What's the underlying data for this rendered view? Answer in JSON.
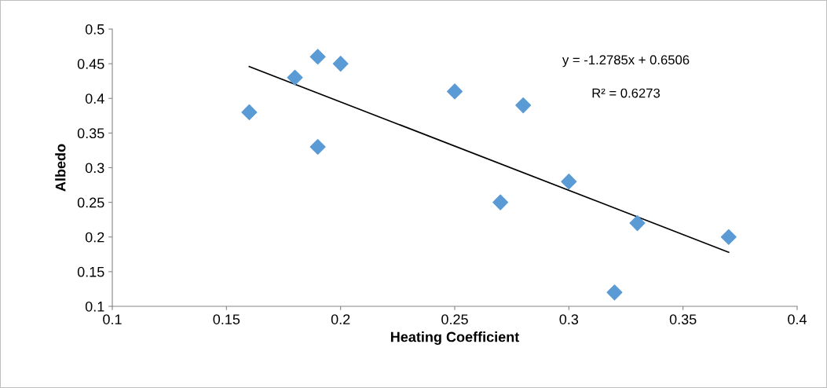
{
  "chart_data": {
    "type": "scatter",
    "xlabel": "Heating Coefficient",
    "ylabel": "Albedo",
    "series": [
      {
        "color": "#5b9bd5",
        "marker": "diamond",
        "x": [
          0.16,
          0.18,
          0.19,
          0.19,
          0.2,
          0.25,
          0.27,
          0.28,
          0.3,
          0.32,
          0.33,
          0.37
        ],
        "values": [
          0.38,
          0.43,
          0.46,
          0.33,
          0.45,
          0.41,
          0.25,
          0.39,
          0.28,
          0.12,
          0.22,
          0.2
        ]
      },
      {
        "type": "line",
        "color": "#000000",
        "marker": "none",
        "x": [
          0.16,
          0.37
        ],
        "values": [
          0.446,
          0.178
        ]
      }
    ],
    "annotations": [
      "y = -1.2785x + 0.6506",
      "R² = 0.6273"
    ],
    "xlim": [
      0.1,
      0.4
    ],
    "xticks": [
      0.1,
      0.15,
      0.2,
      0.25,
      0.3,
      0.35,
      0.4
    ],
    "ylim": [
      0.1,
      0.5
    ],
    "yticks": [
      0.1,
      0.15,
      0.2,
      0.25,
      0.3,
      0.35,
      0.4,
      0.45,
      0.5
    ],
    "grid": false,
    "legend": false
  }
}
